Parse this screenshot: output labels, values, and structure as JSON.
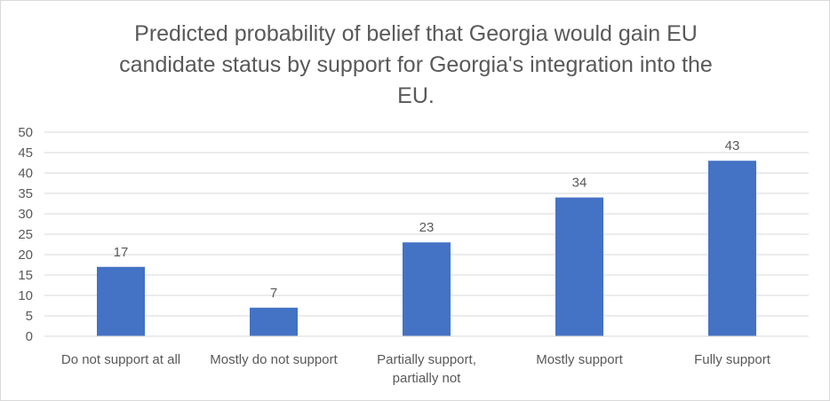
{
  "chart_data": {
    "type": "bar",
    "title": "Predicted probability of belief that Georgia would gain EU candidate status by support for Georgia's integration into the EU.",
    "categories": [
      "Do not support at all",
      "Mostly do not support",
      "Partially support, partially not",
      "Mostly support",
      "Fully support"
    ],
    "category_lines": [
      [
        "Do not support at all"
      ],
      [
        "Mostly do not support"
      ],
      [
        "Partially support,",
        "partially not"
      ],
      [
        "Mostly support"
      ],
      [
        "Fully support"
      ]
    ],
    "values": [
      17,
      7,
      23,
      34,
      43
    ],
    "xlabel": "",
    "ylabel": "",
    "ylim": [
      0,
      50
    ],
    "yticks": [
      0,
      5,
      10,
      15,
      20,
      25,
      30,
      35,
      40,
      45,
      50
    ],
    "grid": true,
    "legend": "none",
    "bar_color": "#4472c4",
    "grid_color": "#d9d9d9",
    "text_color": "#595959"
  }
}
